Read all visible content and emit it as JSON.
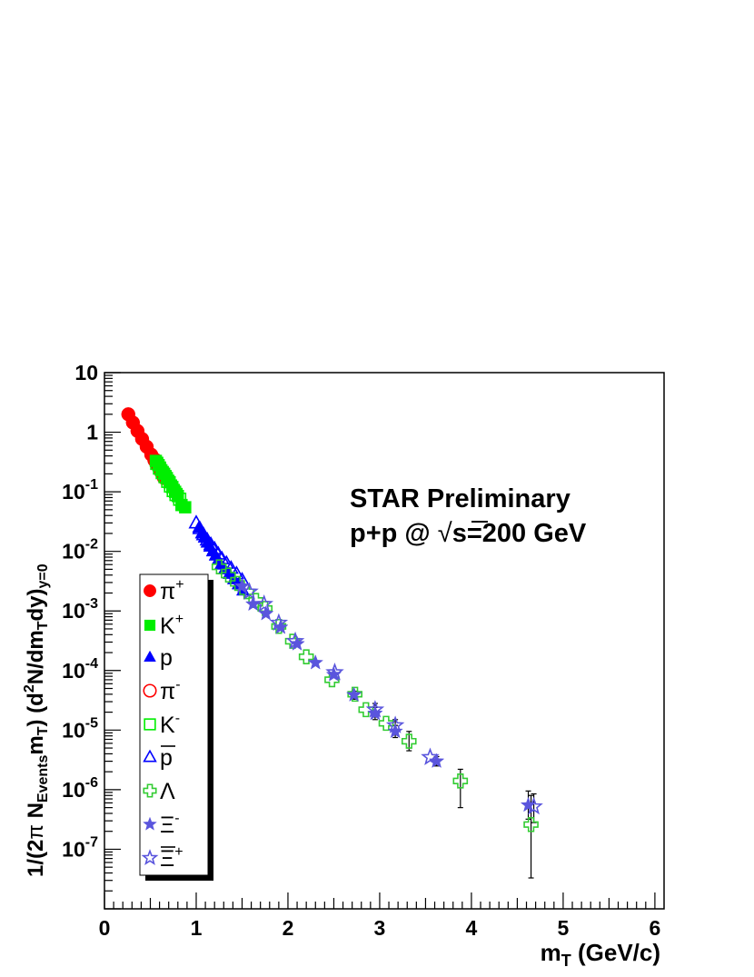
{
  "chart_data": {
    "type": "scatter",
    "title": "",
    "xlabel": "m_T (GeV/c)",
    "ylabel": "1/(2π N_Events m_T) (d²N/dm_T dy)_y=0",
    "xlim": [
      0,
      6.1
    ],
    "ylim": [
      1e-08,
      10
    ],
    "yscale": "log",
    "grid": false,
    "legend_position": "left",
    "x_ticks": [
      {
        "value": 0,
        "label": "0"
      },
      {
        "value": 1,
        "label": "1"
      },
      {
        "value": 2,
        "label": "2"
      },
      {
        "value": 3,
        "label": "3"
      },
      {
        "value": 4,
        "label": "4"
      },
      {
        "value": 5,
        "label": "5"
      },
      {
        "value": 6,
        "label": "6"
      }
    ],
    "y_ticks": [
      {
        "value": 10,
        "base": "10",
        "exp": ""
      },
      {
        "value": 1,
        "base": "1",
        "exp": ""
      },
      {
        "value": 0.1,
        "base": "10",
        "exp": "-1"
      },
      {
        "value": 0.01,
        "base": "10",
        "exp": "-2"
      },
      {
        "value": 0.001,
        "base": "10",
        "exp": "-3"
      },
      {
        "value": 0.0001,
        "base": "10",
        "exp": "-4"
      },
      {
        "value": 1e-05,
        "base": "10",
        "exp": "-5"
      },
      {
        "value": 1e-06,
        "base": "10",
        "exp": "-6"
      },
      {
        "value": 1e-07,
        "base": "10",
        "exp": "-7"
      }
    ],
    "annotations": {
      "line1": "STAR Preliminary",
      "line2_prefix": "p+p @ ",
      "line2_root": "√",
      "line2_s": "s",
      "line2_suffix": "=200 GeV"
    },
    "series": [
      {
        "id": "piplus",
        "label_base": "π",
        "label_sup": "+",
        "marker": "circle",
        "filled": true,
        "color": "#ff0000",
        "points": [
          [
            0.26,
            2.0
          ],
          [
            0.31,
            1.45
          ],
          [
            0.36,
            1.05
          ],
          [
            0.41,
            0.77
          ],
          [
            0.46,
            0.57
          ],
          [
            0.51,
            0.42
          ],
          [
            0.55,
            0.33
          ],
          [
            0.59,
            0.26
          ],
          [
            0.62,
            0.21
          ],
          [
            0.65,
            0.17
          ]
        ]
      },
      {
        "id": "piminus",
        "label_base": "π",
        "label_sup": "-",
        "marker": "circle",
        "filled": false,
        "color": "#ff0000",
        "points": [
          [
            0.55,
            0.34
          ],
          [
            0.59,
            0.27
          ],
          [
            0.62,
            0.22
          ],
          [
            0.65,
            0.18
          ]
        ]
      },
      {
        "id": "kplus",
        "label_base": "K",
        "label_sup": "+",
        "marker": "square",
        "filled": true,
        "color": "#00ee00",
        "points": [
          [
            0.56,
            0.33
          ],
          [
            0.59,
            0.28
          ],
          [
            0.62,
            0.23
          ],
          [
            0.65,
            0.2
          ],
          [
            0.68,
            0.17
          ],
          [
            0.71,
            0.145
          ],
          [
            0.74,
            0.12
          ],
          [
            0.77,
            0.1
          ],
          [
            0.8,
            0.085
          ],
          [
            0.84,
            0.06
          ],
          [
            0.88,
            0.055
          ]
        ]
      },
      {
        "id": "kminus",
        "label_base": "K",
        "label_sup": "-",
        "marker": "square",
        "filled": false,
        "color": "#00ee00",
        "points": [
          [
            0.57,
            0.3
          ],
          [
            0.6,
            0.25
          ],
          [
            0.63,
            0.21
          ],
          [
            0.66,
            0.18
          ],
          [
            0.69,
            0.15
          ],
          [
            0.72,
            0.125
          ],
          [
            0.75,
            0.105
          ],
          [
            0.78,
            0.09
          ],
          [
            0.82,
            0.075
          ]
        ]
      },
      {
        "id": "p",
        "label_base": "p",
        "label_sup": "",
        "marker": "triangle",
        "filled": true,
        "color": "#0000ff",
        "points": [
          [
            1.03,
            0.025
          ],
          [
            1.06,
            0.02
          ],
          [
            1.09,
            0.017
          ],
          [
            1.12,
            0.014
          ],
          [
            1.15,
            0.012
          ],
          [
            1.18,
            0.01
          ],
          [
            1.21,
            0.0085
          ],
          [
            1.24,
            0.0072
          ],
          [
            1.27,
            0.006
          ],
          [
            1.31,
            0.005
          ],
          [
            1.36,
            0.0042
          ],
          [
            1.41,
            0.0034
          ],
          [
            1.46,
            0.0028
          ],
          [
            1.51,
            0.0022
          ]
        ]
      },
      {
        "id": "pbar",
        "label_base": "p",
        "label_sup": "",
        "label_bar": true,
        "marker": "triangle",
        "filled": false,
        "color": "#0000ff",
        "points": [
          [
            1.0,
            0.03
          ],
          [
            1.04,
            0.024
          ],
          [
            1.08,
            0.019
          ],
          [
            1.12,
            0.0155
          ],
          [
            1.16,
            0.013
          ],
          [
            1.2,
            0.011
          ],
          [
            1.24,
            0.009
          ],
          [
            1.28,
            0.0075
          ],
          [
            1.33,
            0.0063
          ],
          [
            1.38,
            0.0052
          ],
          [
            1.44,
            0.0042
          ],
          [
            1.5,
            0.0033
          ]
        ]
      },
      {
        "id": "lambda",
        "label_base": "Λ",
        "label_sup": "",
        "marker": "cross",
        "filled": false,
        "color": "#33cc33",
        "points": [
          [
            1.25,
            0.0055
          ],
          [
            1.35,
            0.004
          ],
          [
            1.45,
            0.0029
          ],
          [
            1.55,
            0.0021
          ],
          [
            1.65,
            0.0015
          ],
          [
            1.75,
            0.0011
          ],
          [
            1.9,
            0.00055
          ],
          [
            2.05,
            0.00031
          ],
          [
            2.2,
            0.00017
          ],
          [
            2.48,
            7e-05
          ],
          [
            2.73,
            4e-05
          ],
          [
            2.85,
            2.2e-05
          ],
          [
            3.07,
            1.3e-05
          ],
          [
            3.32,
            6.5e-06
          ],
          [
            3.88,
            1.4e-06
          ],
          [
            4.65,
            2.6e-07
          ]
        ],
        "errors": [
          null,
          null,
          null,
          null,
          null,
          null,
          null,
          null,
          null,
          null,
          null,
          null,
          null,
          [
            4.5e-06,
            9.5e-06
          ],
          [
            5e-07,
            2.2e-06
          ],
          [
            3.3e-08,
            8e-07
          ]
        ]
      },
      {
        "id": "ximinus",
        "label_base": "Ξ",
        "label_sup": "-",
        "marker": "star",
        "filled": true,
        "color": "#5a55dd",
        "points": [
          [
            1.5,
            0.0026
          ],
          [
            1.62,
            0.0013
          ],
          [
            1.76,
            0.0009
          ],
          [
            1.92,
            0.00053
          ],
          [
            2.1,
            0.00028
          ],
          [
            2.3,
            0.000135
          ],
          [
            2.5,
            8.5e-05
          ],
          [
            2.72,
            3.9e-05
          ],
          [
            2.95,
            1.9e-05
          ],
          [
            3.17,
            9.5e-06
          ],
          [
            3.62,
            3e-06
          ],
          [
            4.62,
            5.5e-07
          ]
        ],
        "errors": [
          null,
          null,
          null,
          null,
          null,
          null,
          null,
          [
            3.3e-05,
            4.5e-05
          ],
          [
            1.5e-05,
            2.4e-05
          ],
          [
            7.5e-06,
            1.2e-05
          ],
          [
            2.5e-06,
            3.6e-06
          ],
          [
            3.2e-07,
            9.5e-07
          ]
        ]
      },
      {
        "id": "xiplus",
        "label_base": "Ξ",
        "label_sup": "+",
        "label_bar": true,
        "marker": "star",
        "filled": false,
        "color": "#5a55dd",
        "points": [
          [
            1.58,
            0.0021
          ],
          [
            1.74,
            0.0013
          ],
          [
            1.9,
            0.00063
          ],
          [
            2.08,
            0.00031
          ],
          [
            2.51,
            9.3e-05
          ],
          [
            2.95,
            2.2e-05
          ],
          [
            3.17,
            1.2e-05
          ],
          [
            3.55,
            3.5e-06
          ],
          [
            4.68,
            5.2e-07
          ]
        ],
        "errors": [
          null,
          null,
          null,
          null,
          null,
          [
            1.7e-05,
            2.8e-05
          ],
          [
            9.5e-06,
            1.5e-05
          ],
          null,
          [
            2.8e-07,
            8.5e-07
          ]
        ]
      }
    ]
  }
}
